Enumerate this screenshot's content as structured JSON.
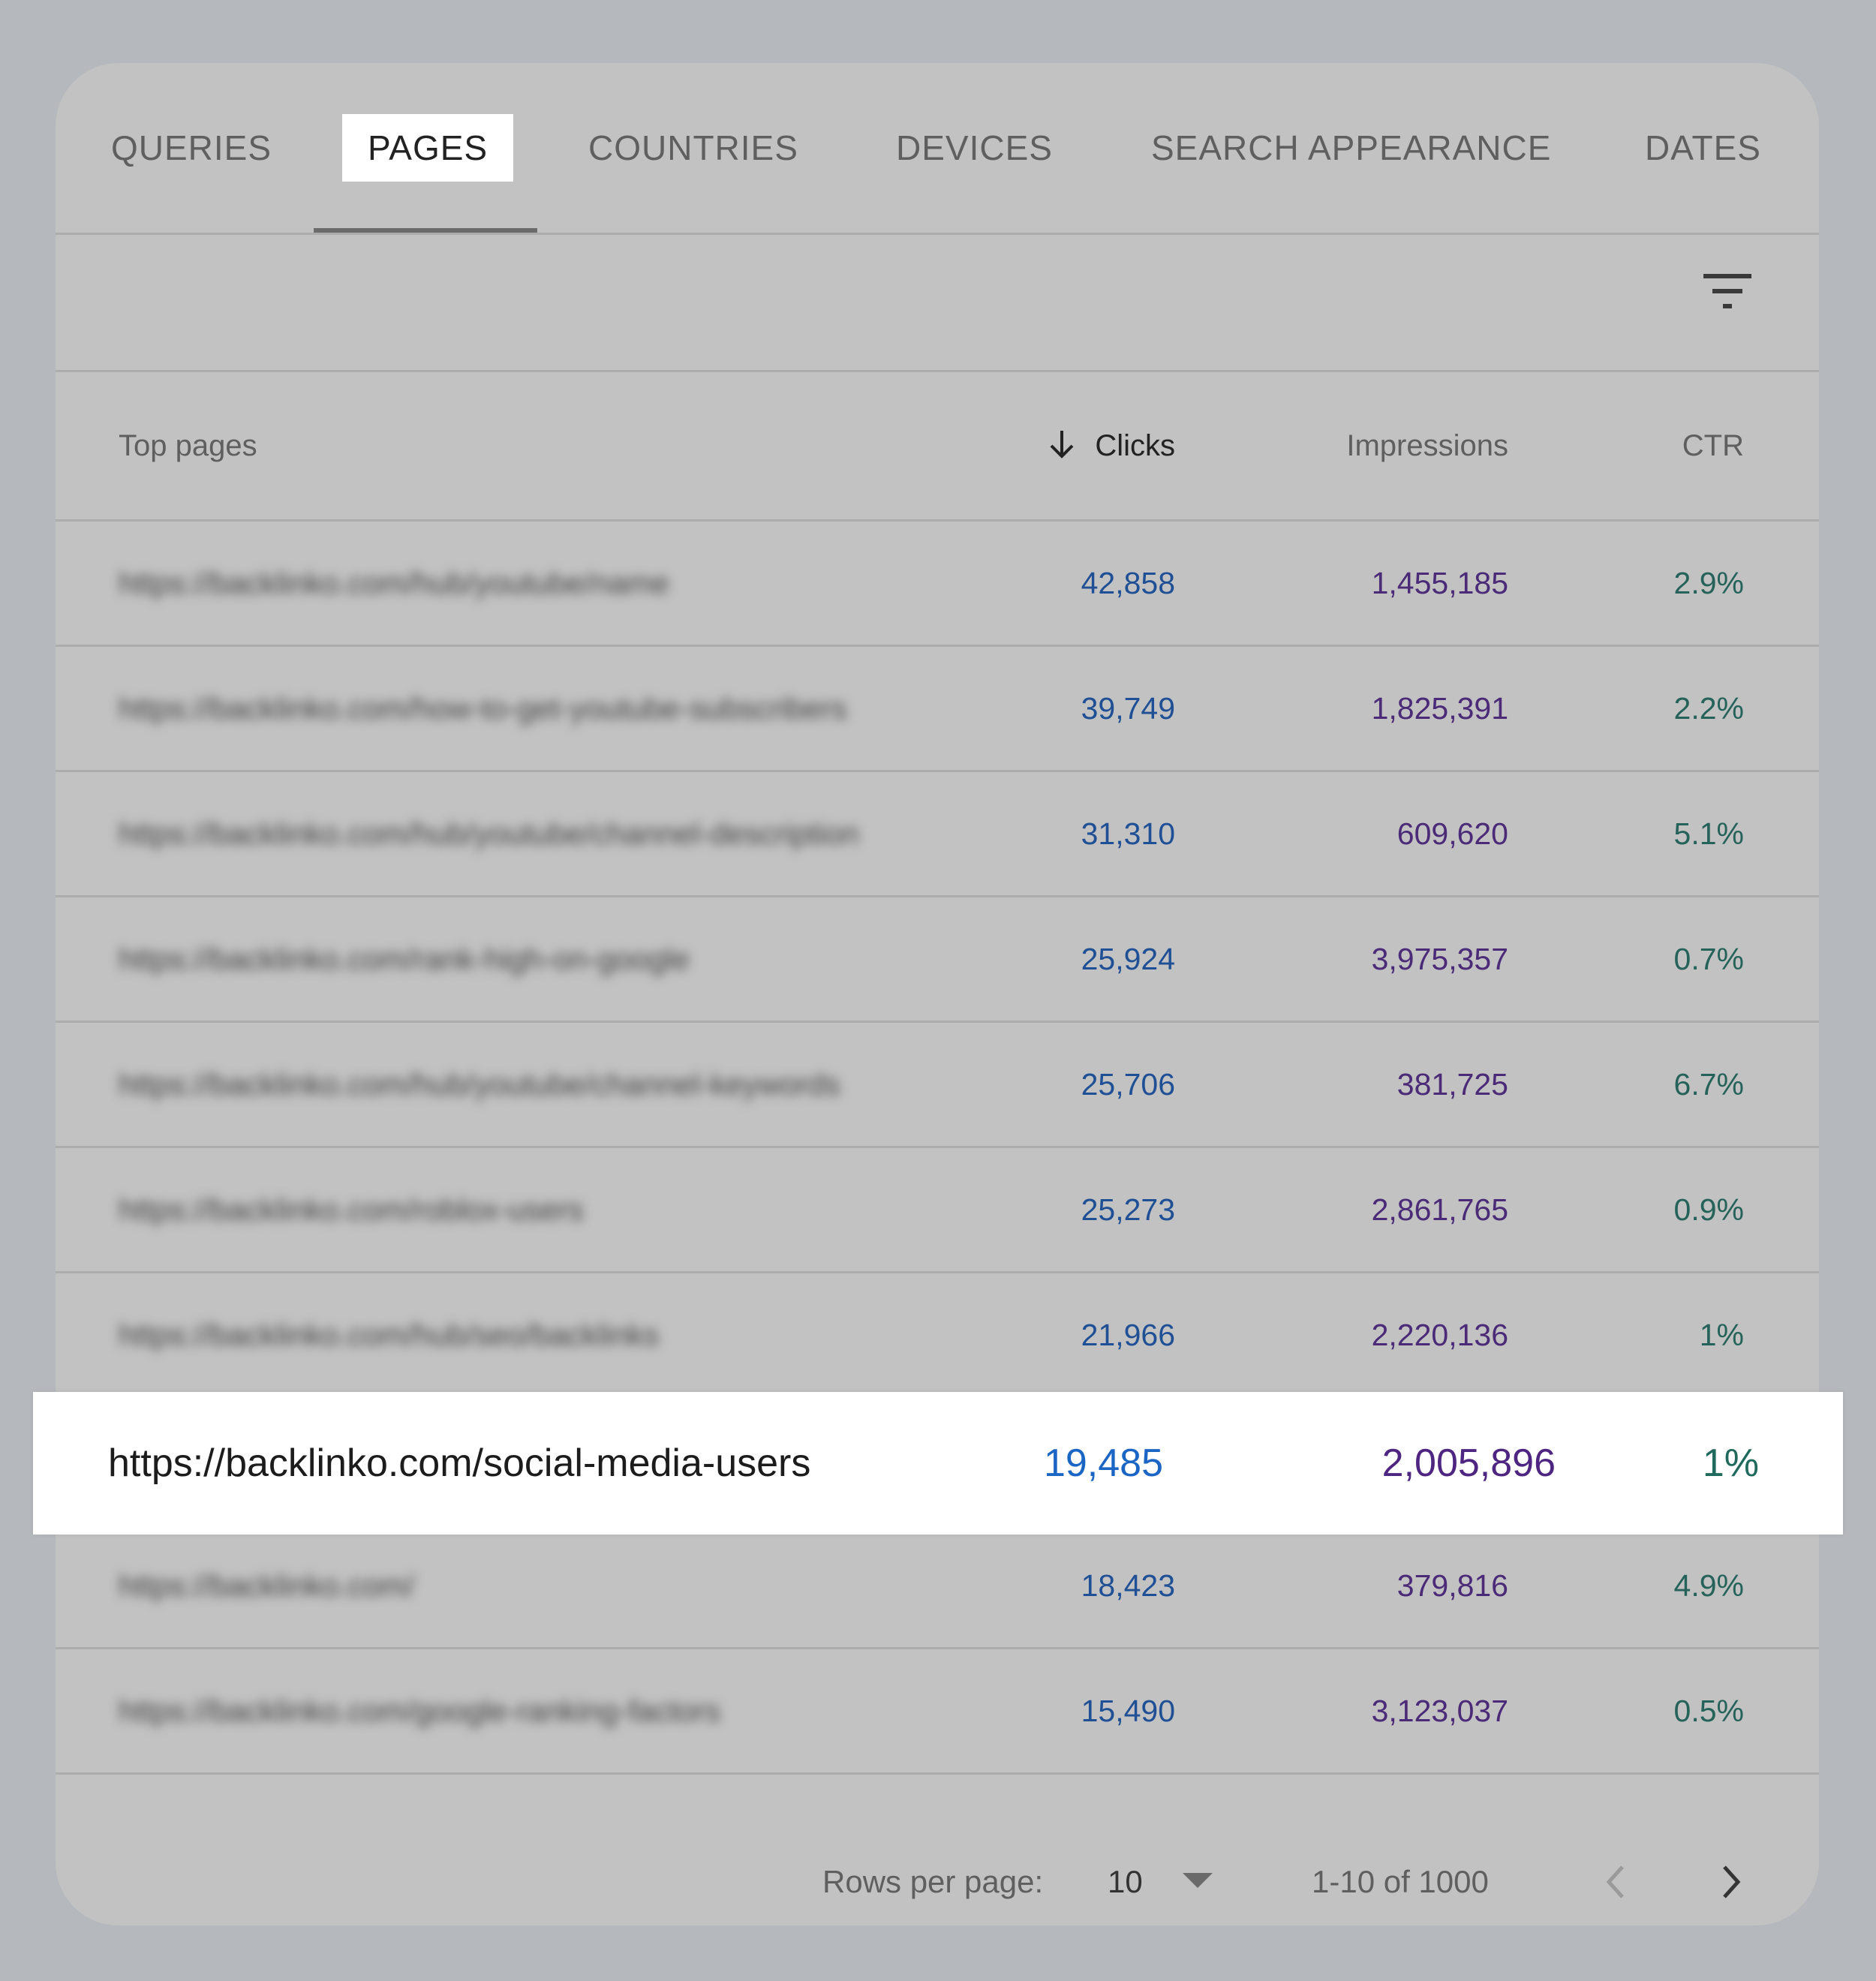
{
  "tabs": [
    {
      "label": "QUERIES",
      "active": false
    },
    {
      "label": "PAGES",
      "active": true
    },
    {
      "label": "COUNTRIES",
      "active": false
    },
    {
      "label": "DEVICES",
      "active": false
    },
    {
      "label": "SEARCH APPEARANCE",
      "active": false
    },
    {
      "label": "DATES",
      "active": false
    }
  ],
  "filter": {
    "icon": "filter-icon"
  },
  "table": {
    "columns": {
      "page": "Top pages",
      "clicks": "Clicks",
      "impressions": "Impressions",
      "ctr": "CTR"
    },
    "sort": {
      "column": "clicks",
      "direction": "descending",
      "icon": "arrow-down-icon"
    },
    "rows": [
      {
        "url": "https://backlinko.com/hub/youtube/name",
        "clicks": "42,858",
        "impressions": "1,455,185",
        "ctr": "2.9%"
      },
      {
        "url": "https://backlinko.com/how-to-get-youtube-subscribers",
        "clicks": "39,749",
        "impressions": "1,825,391",
        "ctr": "2.2%"
      },
      {
        "url": "https://backlinko.com/hub/youtube/channel-description",
        "clicks": "31,310",
        "impressions": "609,620",
        "ctr": "5.1%"
      },
      {
        "url": "https://backlinko.com/rank-high-on-google",
        "clicks": "25,924",
        "impressions": "3,975,357",
        "ctr": "0.7%"
      },
      {
        "url": "https://backlinko.com/hub/youtube/channel-keywords",
        "clicks": "25,706",
        "impressions": "381,725",
        "ctr": "6.7%"
      },
      {
        "url": "https://backlinko.com/roblox-users",
        "clicks": "25,273",
        "impressions": "2,861,765",
        "ctr": "0.9%"
      },
      {
        "url": "https://backlinko.com/hub/seo/backlinks",
        "clicks": "21,966",
        "impressions": "2,220,136",
        "ctr": "1%"
      },
      {
        "url": "https://backlinko.com/social-media-users",
        "clicks": "19,485",
        "impressions": "2,005,896",
        "ctr": "1%"
      },
      {
        "url": "https://backlinko.com/",
        "clicks": "18,423",
        "impressions": "379,816",
        "ctr": "4.9%"
      },
      {
        "url": "https://backlinko.com/google-ranking-factors",
        "clicks": "15,490",
        "impressions": "3,123,037",
        "ctr": "0.5%"
      }
    ],
    "highlighted_row_index": 7
  },
  "pagination": {
    "rows_per_page_label": "Rows per page:",
    "rows_per_page_value": "10",
    "range": "1-10 of 1000",
    "prev_icon": "chevron-left-icon",
    "next_icon": "chevron-right-icon"
  },
  "colors": {
    "background": "#b5b8bc",
    "card": "#c2c2c2",
    "clicks": "#1f4f95",
    "impressions": "#4b2a78",
    "ctr": "#25625a",
    "highlight_clicks": "#1b66c4",
    "highlight_impressions": "#4e2580",
    "highlight_ctr": "#1f6a5d"
  }
}
